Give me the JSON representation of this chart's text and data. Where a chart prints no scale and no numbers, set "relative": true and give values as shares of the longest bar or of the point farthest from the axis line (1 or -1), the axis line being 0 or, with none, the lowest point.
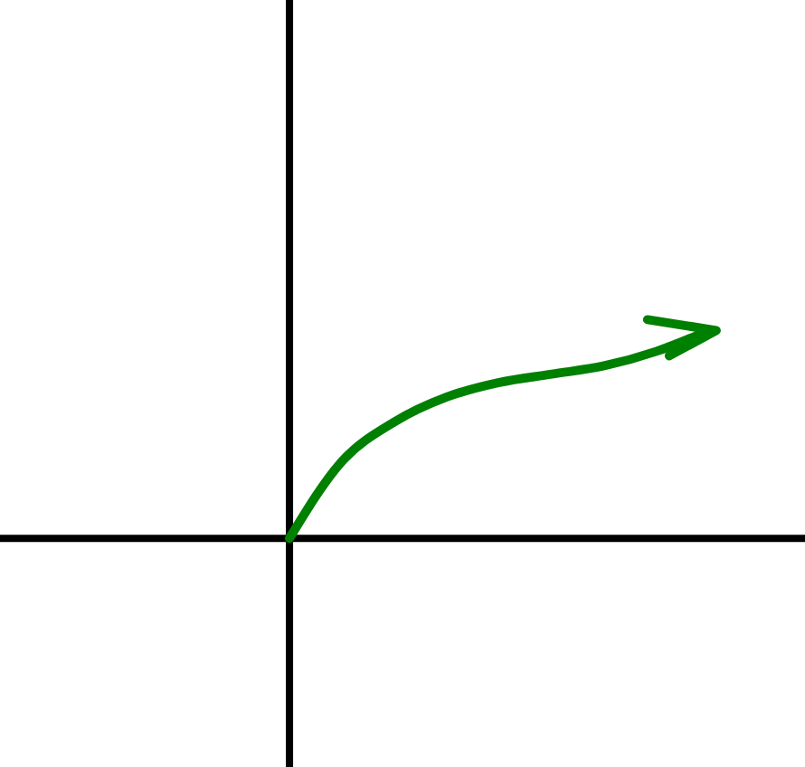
{
  "chart_data": {
    "type": "line",
    "relative": true,
    "categories": [
      null,
      null,
      null,
      null,
      null,
      null,
      null,
      null,
      null
    ],
    "series": [
      {
        "color": "#008000",
        "values": [
          0,
          0.37,
          0.56,
          0.68,
          0.75,
          0.79,
          0.83,
          0.9,
          1
        ]
      }
    ]
  }
}
